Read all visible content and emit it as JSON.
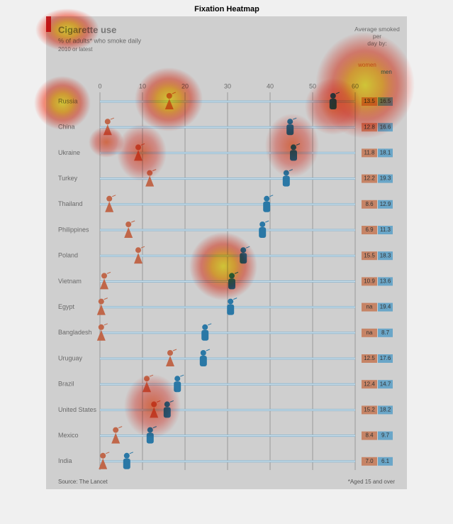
{
  "figure_title": "Fixation Heatmap",
  "chart_data": {
    "type": "dot",
    "title": "Cigarette use",
    "subtitle": "% of adults* who smoke daily",
    "period": "2010 or latest",
    "categories": [
      "Russia",
      "China",
      "Ukraine",
      "Turkey",
      "Thailand",
      "Philippines",
      "Poland",
      "Vietnam",
      "Egypt",
      "Bangladesh",
      "Uruguay",
      "Brazil",
      "United States",
      "Mexico",
      "India"
    ],
    "series": [
      {
        "name": "women",
        "color": "#c0674a",
        "values": [
          16.3,
          1.8,
          9,
          11.7,
          2.2,
          6.7,
          9,
          1,
          0.3,
          0.3,
          16.5,
          11,
          12.7,
          3.7,
          0.7
        ]
      },
      {
        "name": "men",
        "color": "#2a78a6",
        "values": [
          54.8,
          44.7,
          45.5,
          43.8,
          39.2,
          38.2,
          33.7,
          31,
          30.7,
          24.7,
          24.3,
          18.2,
          15.8,
          11.8,
          6.3
        ]
      }
    ],
    "xlim": [
      0,
      60
    ],
    "xticks": [
      0,
      10,
      20,
      30,
      40,
      50,
      60
    ],
    "grid": true,
    "average_title": "Average smoked per day by:",
    "average_women": [
      "13.5",
      "12.8",
      "11.8",
      "12.2",
      "8.6",
      "6.9",
      "15.5",
      "10.9",
      "na",
      "na",
      "12.5",
      "12.4",
      "15.2",
      "8.4",
      "7.0"
    ],
    "average_men": [
      "16.5",
      "16.6",
      "18.1",
      "19.3",
      "12.9",
      "11.3",
      "18.3",
      "13.6",
      "19.4",
      "8.7",
      "17.6",
      "14.7",
      "18.2",
      "9.7",
      "6.1"
    ],
    "source": "Source: The Lancet",
    "footnote": "*Aged 15 and over"
  }
}
